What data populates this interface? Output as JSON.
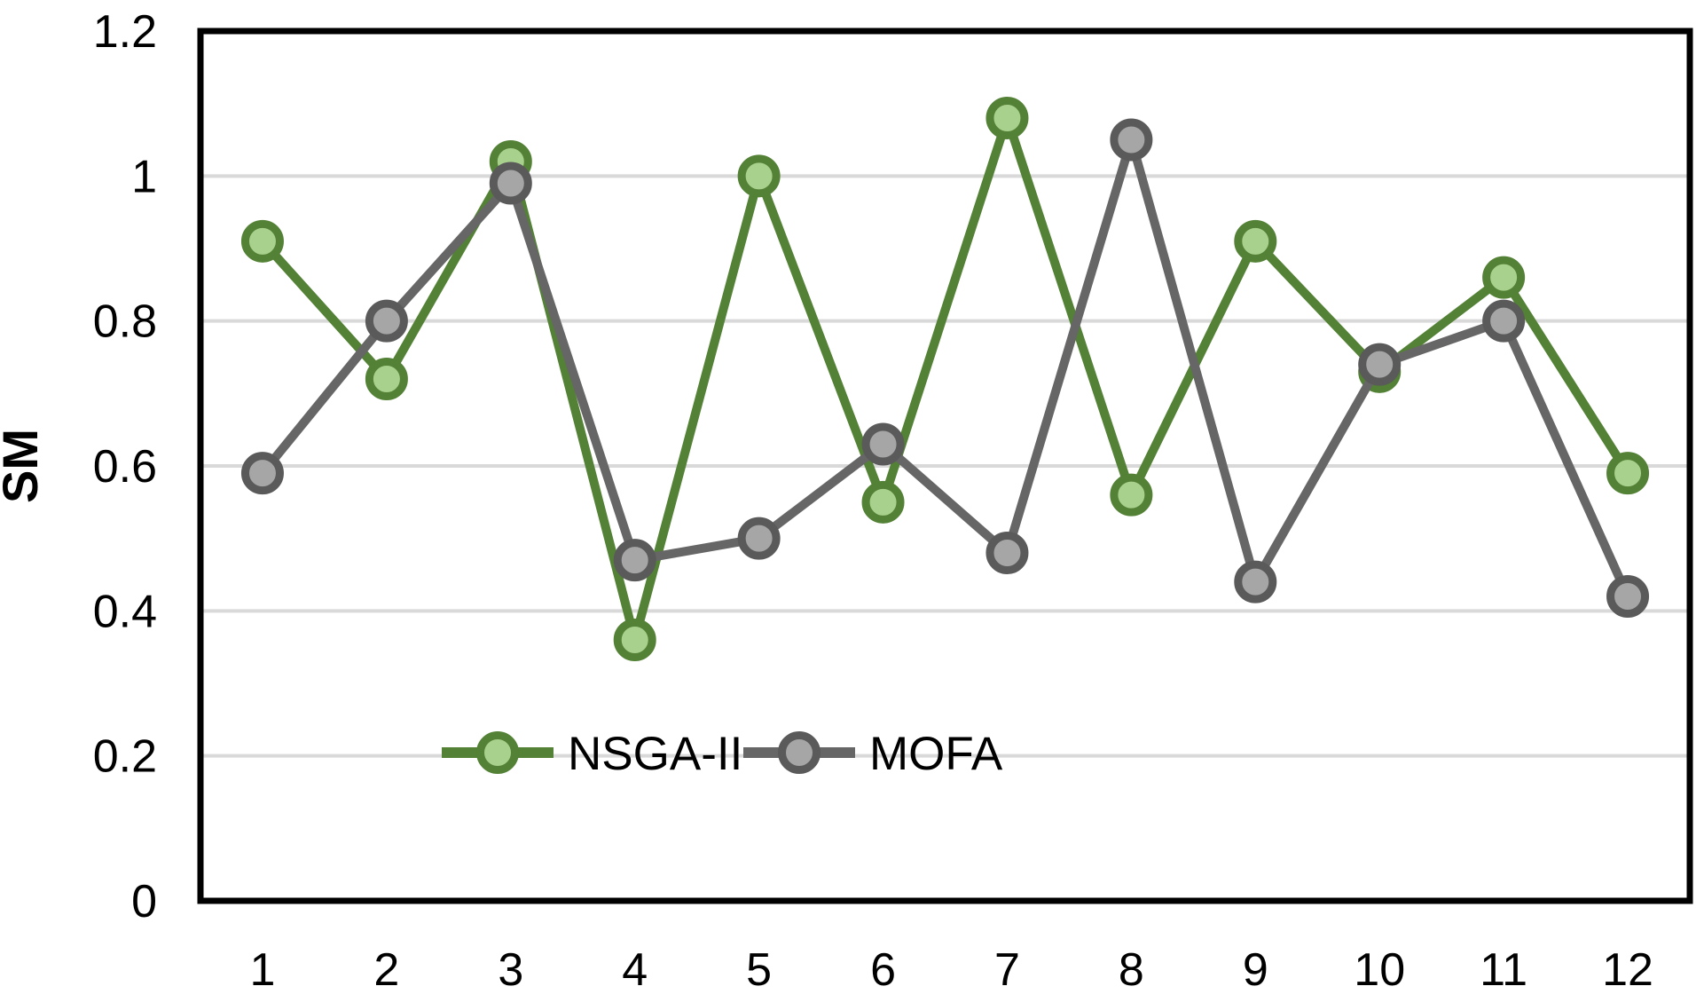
{
  "chart_data": {
    "type": "line",
    "title": "",
    "xlabel": "",
    "ylabel": "SM",
    "categories": [
      "1",
      "2",
      "3",
      "4",
      "5",
      "6",
      "7",
      "8",
      "9",
      "10",
      "11",
      "12"
    ],
    "series": [
      {
        "name": "NSGA-II",
        "values": [
          0.91,
          0.72,
          1.02,
          0.36,
          1.0,
          0.55,
          1.08,
          0.56,
          0.91,
          0.73,
          0.86,
          0.59
        ],
        "line_color": "#538135",
        "marker_fill": "#A9D18E",
        "marker_ring": "#538135"
      },
      {
        "name": "MOFA",
        "values": [
          0.59,
          0.8,
          0.99,
          0.47,
          0.5,
          0.63,
          0.48,
          1.05,
          0.44,
          0.74,
          0.8,
          0.42
        ],
        "line_color": "#666666",
        "marker_fill": "#A6A6A6",
        "marker_ring": "#5A5A5A"
      }
    ],
    "ylim": [
      0,
      1.2
    ],
    "yticks": [
      {
        "value": 0,
        "label": "0"
      },
      {
        "value": 0.2,
        "label": "0.2"
      },
      {
        "value": 0.4,
        "label": "0.4"
      },
      {
        "value": 0.6,
        "label": "0.6"
      },
      {
        "value": 0.8,
        "label": "0.8"
      },
      {
        "value": 1,
        "label": "1"
      },
      {
        "value": 1.2,
        "label": "1.2"
      }
    ],
    "grid": true,
    "grid_color": "#D9D9D9",
    "axis_color": "#000000",
    "background_color": "#FFFFFF",
    "legend": {
      "position": "inside-bottom-center",
      "entries": [
        "NSGA-II",
        "MOFA"
      ]
    }
  }
}
